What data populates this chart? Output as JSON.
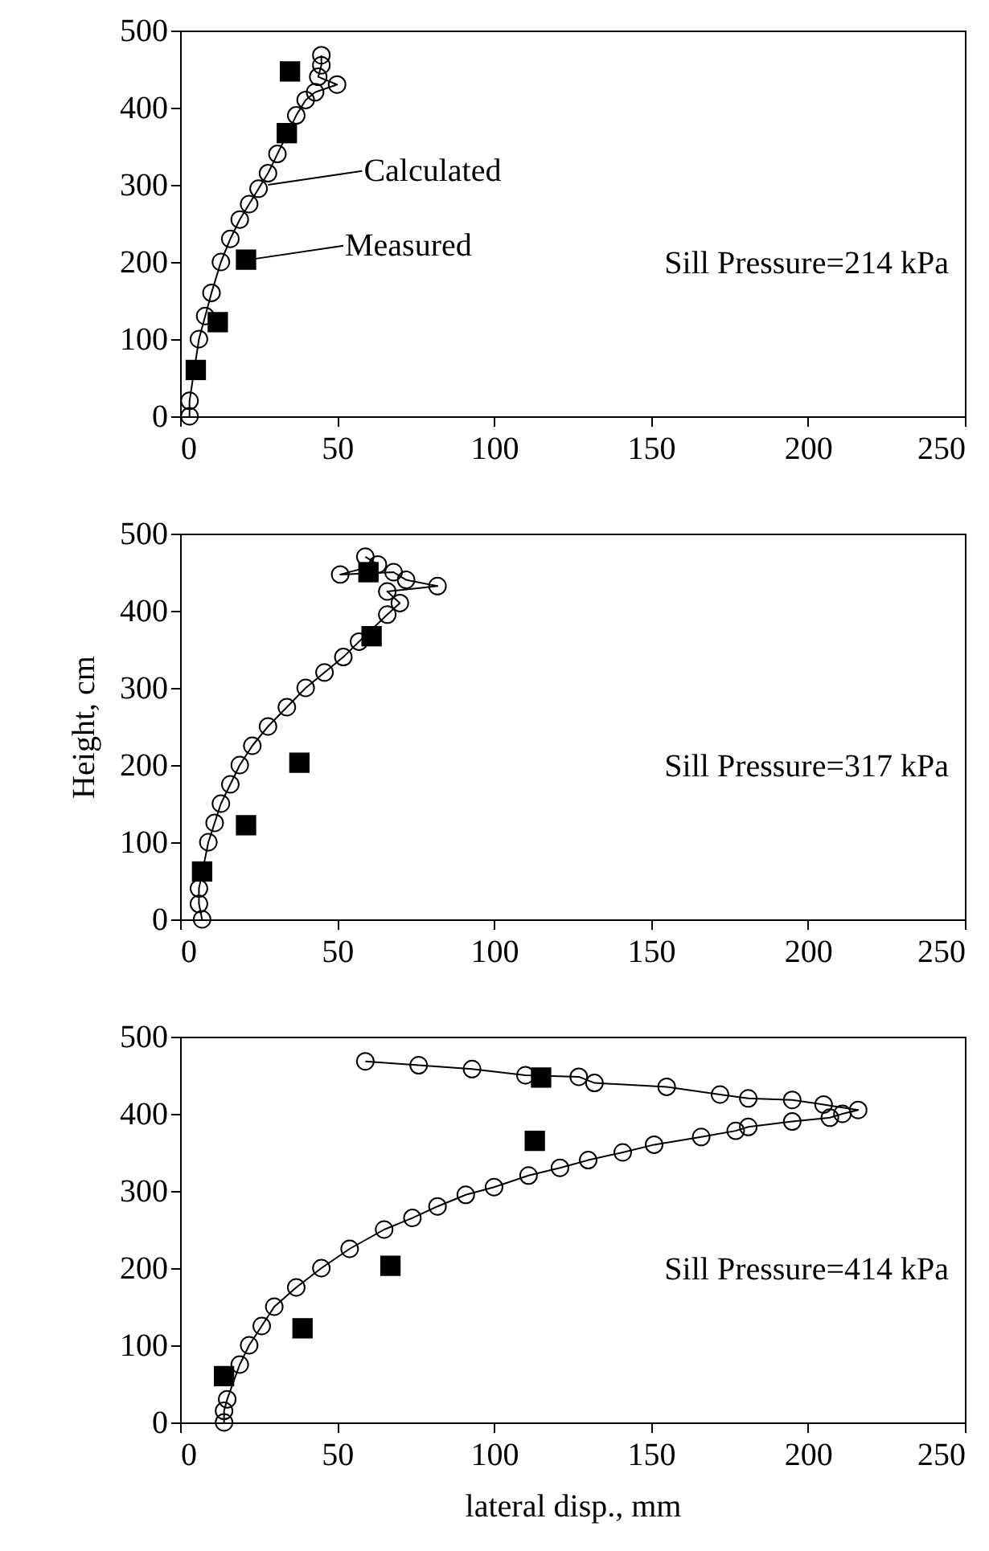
{
  "chart_data": [
    {
      "type": "line",
      "xlim": [
        0,
        250
      ],
      "xticks": [
        0,
        50,
        100,
        150,
        200,
        250
      ],
      "ylim": [
        0,
        500
      ],
      "yticks": [
        0,
        100,
        200,
        300,
        400,
        500
      ],
      "grid": false,
      "annotations": [
        {
          "text": "Calculated",
          "x": 28,
          "y": 300
        },
        {
          "text": "Measured",
          "x": 22,
          "y": 203
        },
        "Sill Pressure=214 kPa"
      ],
      "series": [
        {
          "marker": "circle",
          "color": "#000000",
          "x": [
            3,
            3,
            6,
            8,
            10,
            13,
            16,
            19,
            22,
            25,
            28,
            31,
            37,
            40,
            43,
            50,
            44,
            45,
            45
          ],
          "values": [
            0,
            20,
            100,
            130,
            160,
            200,
            230,
            255,
            275,
            295,
            315,
            340,
            390,
            410,
            420,
            430,
            440,
            455,
            468
          ]
        },
        {
          "type": "scatter",
          "marker": "square",
          "color": "#000000",
          "x": [
            5,
            12,
            21,
            34,
            35
          ],
          "values": [
            60,
            122,
            203,
            367,
            447
          ]
        }
      ]
    },
    {
      "type": "line",
      "xlim": [
        0,
        250
      ],
      "xticks": [
        0,
        50,
        100,
        150,
        200,
        250
      ],
      "ylim": [
        0,
        500
      ],
      "yticks": [
        0,
        100,
        200,
        300,
        400,
        500
      ],
      "ylabel": "Height, cm",
      "grid": false,
      "annotations": [
        "Sill Pressure=317 kPa"
      ],
      "series": [
        {
          "marker": "circle",
          "color": "#000000",
          "x": [
            7,
            6,
            6,
            9,
            11,
            13,
            16,
            19,
            23,
            28,
            34,
            40,
            46,
            52,
            57,
            66,
            70,
            66,
            82,
            72,
            68,
            51,
            63,
            59
          ],
          "values": [
            0,
            20,
            40,
            100,
            125,
            150,
            175,
            200,
            225,
            250,
            275,
            300,
            320,
            340,
            360,
            395,
            410,
            425,
            432,
            440,
            450,
            447,
            460,
            470
          ]
        },
        {
          "type": "scatter",
          "marker": "square",
          "color": "#000000",
          "x": [
            7,
            21,
            38,
            61,
            60
          ],
          "values": [
            62,
            122,
            203,
            367,
            450
          ]
        }
      ]
    },
    {
      "type": "line",
      "xlim": [
        0,
        250
      ],
      "xticks": [
        0,
        50,
        100,
        150,
        200,
        250
      ],
      "ylim": [
        0,
        500
      ],
      "yticks": [
        0,
        100,
        200,
        300,
        400,
        500
      ],
      "xlabel": "lateral disp., mm",
      "grid": false,
      "annotations": [
        "Sill Pressure=414 kPa"
      ],
      "series": [
        {
          "marker": "circle",
          "color": "#000000",
          "x": [
            14,
            14,
            15,
            19,
            22,
            26,
            30,
            37,
            45,
            54,
            65,
            74,
            82,
            91,
            100,
            111,
            121,
            130,
            141,
            151,
            166,
            177,
            181,
            195,
            207,
            211,
            216,
            205,
            195,
            181,
            172,
            155,
            132,
            127,
            110,
            93,
            76,
            59
          ],
          "values": [
            0,
            15,
            30,
            75,
            100,
            125,
            150,
            175,
            200,
            225,
            250,
            265,
            280,
            295,
            305,
            320,
            330,
            340,
            350,
            360,
            370,
            378,
            383,
            390,
            395,
            400,
            405,
            412,
            418,
            420,
            425,
            435,
            440,
            448,
            450,
            458,
            463,
            468
          ]
        },
        {
          "type": "scatter",
          "marker": "square",
          "color": "#000000",
          "x": [
            14,
            39,
            67,
            113,
            115
          ],
          "values": [
            60,
            122,
            203,
            365,
            447
          ]
        }
      ]
    }
  ]
}
